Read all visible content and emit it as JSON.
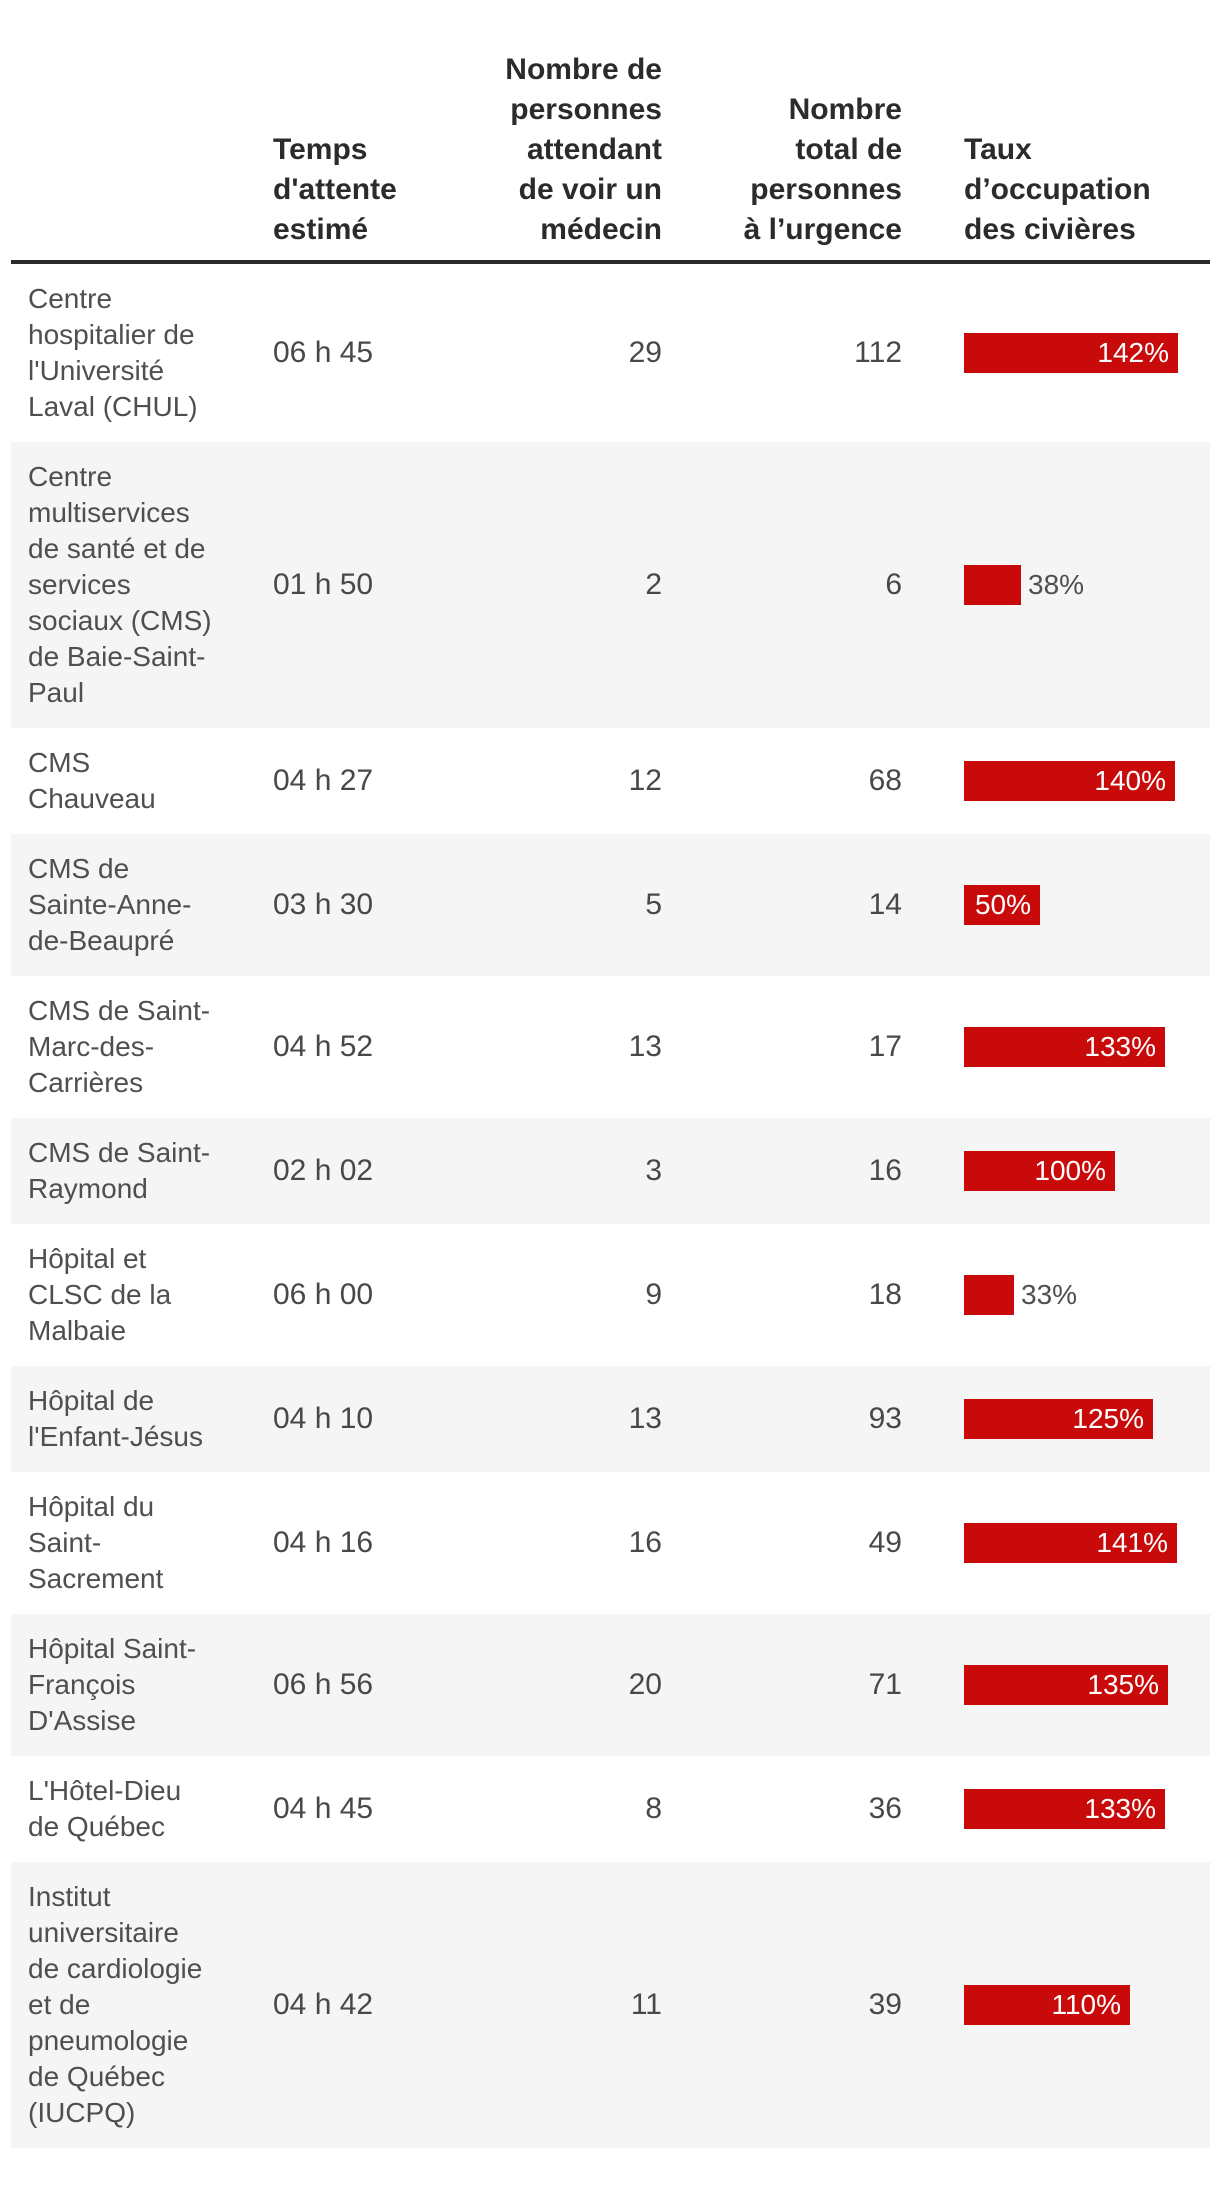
{
  "colors": {
    "bar_red": "#c90a0a",
    "row_alt_bg": "#f5f5f5",
    "header_text": "#2b2b2b",
    "body_text": "#4f4f4f"
  },
  "table": {
    "columns": {
      "name": "",
      "wait": "Temps\nd'attente\nestimé",
      "waiting": "Nombre de\npersonnes\nattendant\nde voir un\nmédecin",
      "total": "Nombre\ntotal de\npersonnes\nà l’urgence",
      "occupancy": "Taux\nd’occupation\ndes civières"
    },
    "rows": [
      {
        "name": "Centre\nhospitalier de\nl'Université\nLaval (CHUL)",
        "wait": "06 h 45",
        "waiting": 29,
        "total": 112,
        "occupancy_pct": 142,
        "occupancy_label": "142%",
        "label_inside": true
      },
      {
        "name": "Centre\nmultiservices\nde santé et de\nservices\nsociaux (CMS)\nde Baie-Saint-\nPaul",
        "wait": "01 h 50",
        "waiting": 2,
        "total": 6,
        "occupancy_pct": 38,
        "occupancy_label": "38%",
        "label_inside": false
      },
      {
        "name": "CMS\nChauveau",
        "wait": "04 h 27",
        "waiting": 12,
        "total": 68,
        "occupancy_pct": 140,
        "occupancy_label": "140%",
        "label_inside": true
      },
      {
        "name": "CMS de\nSainte-Anne-\nde-Beaupré",
        "wait": "03 h 30",
        "waiting": 5,
        "total": 14,
        "occupancy_pct": 50,
        "occupancy_label": "50%",
        "label_inside": true
      },
      {
        "name": "CMS de Saint-\nMarc-des-\nCarrières",
        "wait": "04 h 52",
        "waiting": 13,
        "total": 17,
        "occupancy_pct": 133,
        "occupancy_label": "133%",
        "label_inside": true
      },
      {
        "name": "CMS de Saint-\nRaymond",
        "wait": "02 h 02",
        "waiting": 3,
        "total": 16,
        "occupancy_pct": 100,
        "occupancy_label": "100%",
        "label_inside": true
      },
      {
        "name": "Hôpital et\nCLSC de la\nMalbaie",
        "wait": "06 h 00",
        "waiting": 9,
        "total": 18,
        "occupancy_pct": 33,
        "occupancy_label": "33%",
        "label_inside": false
      },
      {
        "name": "Hôpital de\nl'Enfant-Jésus",
        "wait": "04 h 10",
        "waiting": 13,
        "total": 93,
        "occupancy_pct": 125,
        "occupancy_label": "125%",
        "label_inside": true
      },
      {
        "name": "Hôpital du\nSaint-\nSacrement",
        "wait": "04 h 16",
        "waiting": 16,
        "total": 49,
        "occupancy_pct": 141,
        "occupancy_label": "141%",
        "label_inside": true
      },
      {
        "name": "Hôpital Saint-\nFrançois\nD'Assise",
        "wait": "06 h 56",
        "waiting": 20,
        "total": 71,
        "occupancy_pct": 135,
        "occupancy_label": "135%",
        "label_inside": true
      },
      {
        "name": "L'Hôtel-Dieu\nde Québec",
        "wait": "04 h 45",
        "waiting": 8,
        "total": 36,
        "occupancy_pct": 133,
        "occupancy_label": "133%",
        "label_inside": true
      },
      {
        "name": "Institut\nuniversitaire\nde cardiologie\net de\npneumologie\nde Québec\n(IUCPQ)",
        "wait": "04 h 42",
        "waiting": 11,
        "total": 39,
        "occupancy_pct": 110,
        "occupancy_label": "110%",
        "label_inside": true
      }
    ]
  },
  "chart_data": {
    "type": "table",
    "columns": [
      "Hôpital",
      "Temps d'attente estimé",
      "Nombre de personnes attendant de voir un médecin",
      "Nombre total de personnes à l’urgence",
      "Taux d’occupation des civières"
    ],
    "rows": [
      [
        "Centre hospitalier de l'Université Laval (CHUL)",
        "06 h 45",
        29,
        112,
        "142%"
      ],
      [
        "Centre multiservices de santé et de services sociaux (CMS) de Baie-Saint-Paul",
        "01 h 50",
        2,
        6,
        "38%"
      ],
      [
        "CMS Chauveau",
        "04 h 27",
        12,
        68,
        "140%"
      ],
      [
        "CMS de Sainte-Anne-de-Beaupré",
        "03 h 30",
        5,
        14,
        "50%"
      ],
      [
        "CMS de Saint-Marc-des-Carrières",
        "04 h 52",
        13,
        17,
        "133%"
      ],
      [
        "CMS de Saint-Raymond",
        "02 h 02",
        3,
        16,
        "100%"
      ],
      [
        "Hôpital et CLSC de la Malbaie",
        "06 h 00",
        9,
        18,
        "33%"
      ],
      [
        "Hôpital de l'Enfant-Jésus",
        "04 h 10",
        13,
        93,
        "125%"
      ],
      [
        "Hôpital du Saint-Sacrement",
        "04 h 16",
        16,
        49,
        "141%"
      ],
      [
        "Hôpital Saint-François D'Assise",
        "06 h 56",
        20,
        71,
        "135%"
      ],
      [
        "L'Hôtel-Dieu de Québec",
        "04 h 45",
        8,
        36,
        "133%"
      ],
      [
        "Institut universitaire de cardiologie et de pneumologie de Québec (IUCPQ)",
        "04 h 42",
        11,
        39,
        "110%"
      ]
    ],
    "bar_series": [
      {
        "name": "Taux d’occupation des civières (%)",
        "values": [
          142,
          38,
          140,
          50,
          133,
          100,
          33,
          125,
          141,
          135,
          133,
          110
        ]
      }
    ],
    "bar_color": "#c90a0a",
    "legend_position": "none",
    "grid": false
  }
}
